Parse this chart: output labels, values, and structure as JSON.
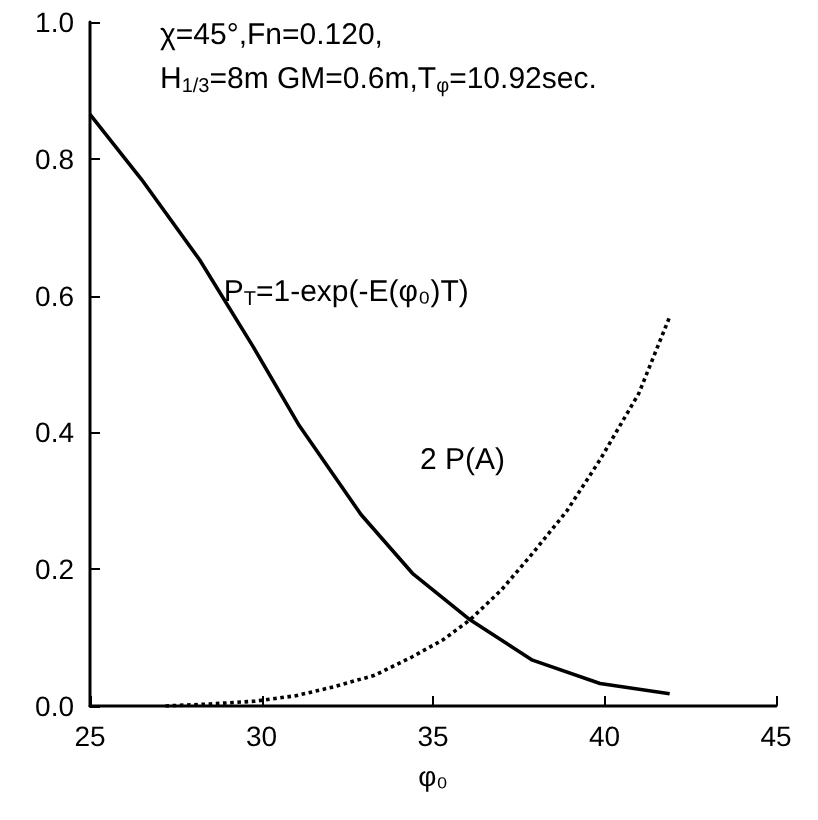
{
  "chart_data": {
    "type": "line",
    "xlabel": "φ₀",
    "xlim": [
      25,
      45
    ],
    "xticks": [
      25,
      30,
      35,
      40,
      45
    ],
    "ylim": [
      0,
      1
    ],
    "yticks": [
      {
        "value": 0,
        "label": "0.0"
      },
      {
        "value": 0.2,
        "label": "0.2"
      },
      {
        "value": 0.4,
        "label": "0.4"
      },
      {
        "value": 0.6,
        "label": "0.6"
      },
      {
        "value": 0.8,
        "label": "0.8"
      },
      {
        "value": 1,
        "label": "1.0"
      }
    ],
    "grid": false,
    "marker": "none",
    "annotations": [
      "χ=45°,Fn=0.120,",
      "H$_{1/3}$=8m GM=0.6m,T$_{φ}$=10.92sec."
    ],
    "series": [
      {
        "name": "P$_{T}$=1-exp(-E(φ₀)T)",
        "color": "#000000",
        "line_style": "solid",
        "x": [
          25,
          26.5,
          28.2,
          29.76,
          31.1,
          32.9,
          34.4,
          36.08,
          37.9,
          39.87,
          41.9
        ],
        "values": [
          0.865,
          0.77,
          0.652,
          0.525,
          0.41,
          0.28,
          0.194,
          0.126,
          0.067,
          0.033,
          0.018
        ]
      },
      {
        "name": "2 P(A)",
        "color": "#000000",
        "line_style": "dotted",
        "x": [
          27.2,
          28.5,
          29.8,
          31,
          32.1,
          33.3,
          34.4,
          35.3,
          36.08,
          37,
          37.9,
          38.9,
          39.87,
          41,
          41.9
        ],
        "values": [
          0,
          0.003,
          0.007,
          0.015,
          0.028,
          0.045,
          0.072,
          0.097,
          0.126,
          0.17,
          0.223,
          0.285,
          0.36,
          0.457,
          0.569
        ]
      }
    ]
  }
}
